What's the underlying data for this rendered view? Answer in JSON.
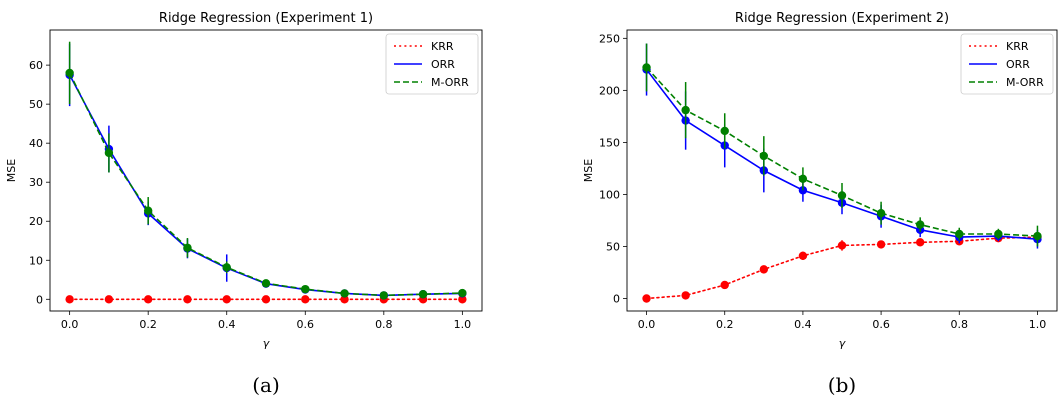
{
  "chart_data": [
    {
      "type": "line",
      "title": "Ridge Regression (Experiment 1)",
      "xlabel": "γ",
      "ylabel": "MSE",
      "caption": "(a)",
      "xlim": [
        -0.05,
        1.05
      ],
      "ylim": [
        -3,
        69
      ],
      "xticks": [
        0.0,
        0.2,
        0.4,
        0.6,
        0.8,
        1.0
      ],
      "xtick_labels": [
        "0.0",
        "0.2",
        "0.4",
        "0.6",
        "0.8",
        "1.0"
      ],
      "yticks": [
        0,
        10,
        20,
        30,
        40,
        50,
        60
      ],
      "ytick_labels": [
        "0",
        "10",
        "20",
        "30",
        "40",
        "50",
        "60"
      ],
      "legend_position": "top-right",
      "x": [
        0.0,
        0.1,
        0.2,
        0.3,
        0.4,
        0.5,
        0.6,
        0.7,
        0.8,
        0.9,
        1.0
      ],
      "series": [
        {
          "name": "KRR",
          "color": "#ff0000",
          "style": "dotted",
          "values": [
            0,
            0,
            0,
            0,
            0,
            0,
            0,
            0,
            0,
            0,
            0
          ],
          "errors": [
            0,
            0,
            0,
            0,
            0,
            0,
            0,
            0,
            0,
            0,
            0
          ]
        },
        {
          "name": "ORR",
          "color": "#0000ff",
          "style": "solid",
          "values": [
            57.5,
            38.5,
            22.0,
            13.0,
            8.0,
            4.0,
            2.5,
            1.5,
            1.0,
            1.3,
            1.5
          ],
          "errors": [
            8.0,
            6.0,
            3.0,
            2.5,
            3.5,
            1.0,
            0.8,
            0.5,
            0.4,
            0.4,
            0.5
          ]
        },
        {
          "name": "M-ORR",
          "color": "#008000",
          "style": "dashed",
          "values": [
            58.0,
            37.5,
            22.7,
            13.2,
            8.2,
            4.1,
            2.6,
            1.5,
            1.0,
            1.3,
            1.6
          ],
          "errors": [
            8.0,
            5.0,
            3.5,
            2.5,
            1.5,
            1.0,
            0.8,
            0.5,
            0.4,
            0.4,
            0.5
          ]
        }
      ]
    },
    {
      "type": "line",
      "title": "Ridge Regression (Experiment 2)",
      "xlabel": "γ",
      "ylabel": "MSE",
      "caption": "(b)",
      "xlim": [
        -0.05,
        1.05
      ],
      "ylim": [
        -12,
        258
      ],
      "xticks": [
        0.0,
        0.2,
        0.4,
        0.6,
        0.8,
        1.0
      ],
      "xtick_labels": [
        "0.0",
        "0.2",
        "0.4",
        "0.6",
        "0.8",
        "1.0"
      ],
      "yticks": [
        0,
        50,
        100,
        150,
        200,
        250
      ],
      "ytick_labels": [
        "0",
        "50",
        "100",
        "150",
        "200",
        "250"
      ],
      "legend_position": "top-right",
      "x": [
        0.0,
        0.1,
        0.2,
        0.3,
        0.4,
        0.5,
        0.6,
        0.7,
        0.8,
        0.9,
        1.0
      ],
      "series": [
        {
          "name": "KRR",
          "color": "#ff0000",
          "style": "dotted",
          "values": [
            0,
            3,
            13,
            28,
            41,
            51,
            52,
            54,
            55,
            58,
            59
          ],
          "errors": [
            0,
            1,
            2,
            3,
            4,
            5,
            3,
            3,
            3,
            2,
            2
          ]
        },
        {
          "name": "ORR",
          "color": "#0000ff",
          "style": "solid",
          "values": [
            220,
            171,
            147,
            123,
            104,
            92,
            79,
            66,
            59,
            60,
            57
          ],
          "errors": [
            25,
            28,
            21,
            21,
            11,
            11,
            11,
            7,
            6,
            5,
            9
          ]
        },
        {
          "name": "M-ORR",
          "color": "#008000",
          "style": "dashed",
          "values": [
            222,
            181,
            161,
            137,
            115,
            99,
            82,
            71,
            62,
            62,
            60
          ],
          "errors": [
            23,
            27,
            17,
            19,
            11,
            12,
            11,
            7,
            6,
            5,
            10
          ]
        }
      ]
    }
  ]
}
